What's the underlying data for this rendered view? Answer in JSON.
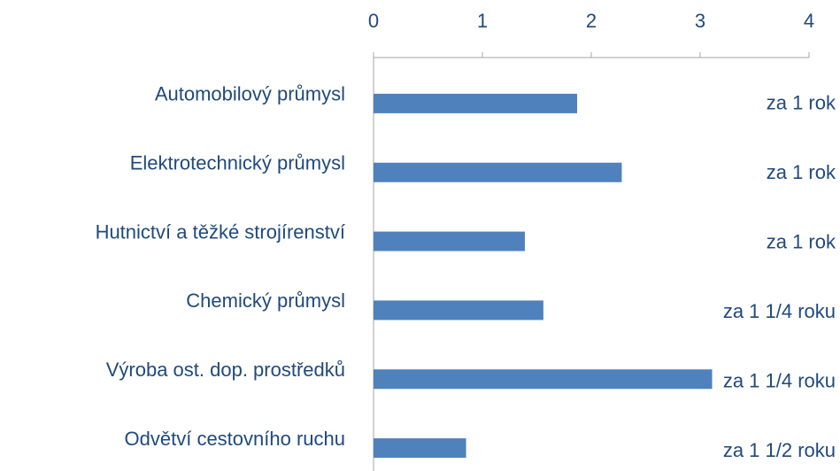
{
  "chart_data": {
    "type": "bar",
    "orientation": "horizontal",
    "categories": [
      "Automobilový průmysl",
      "Elektrotechnický průmysl",
      "Hutnictví a těžké strojírenství",
      "Chemický průmysl",
      "Výroba ost. dop. prostředků",
      "Odvětví cestovního ruchu"
    ],
    "values": [
      1.87,
      2.28,
      1.39,
      1.56,
      3.11,
      0.85
    ],
    "annotations": [
      "za 1 rok",
      "za 1 rok",
      "za 1 rok",
      "za 1 1/4 roku",
      "za 1 1/4 roku",
      "za 1 1/2 roku"
    ],
    "color": "#4f81bd",
    "xlim": [
      0,
      4
    ],
    "xticks": [
      0,
      1,
      2,
      3,
      4
    ],
    "grid": false
  }
}
